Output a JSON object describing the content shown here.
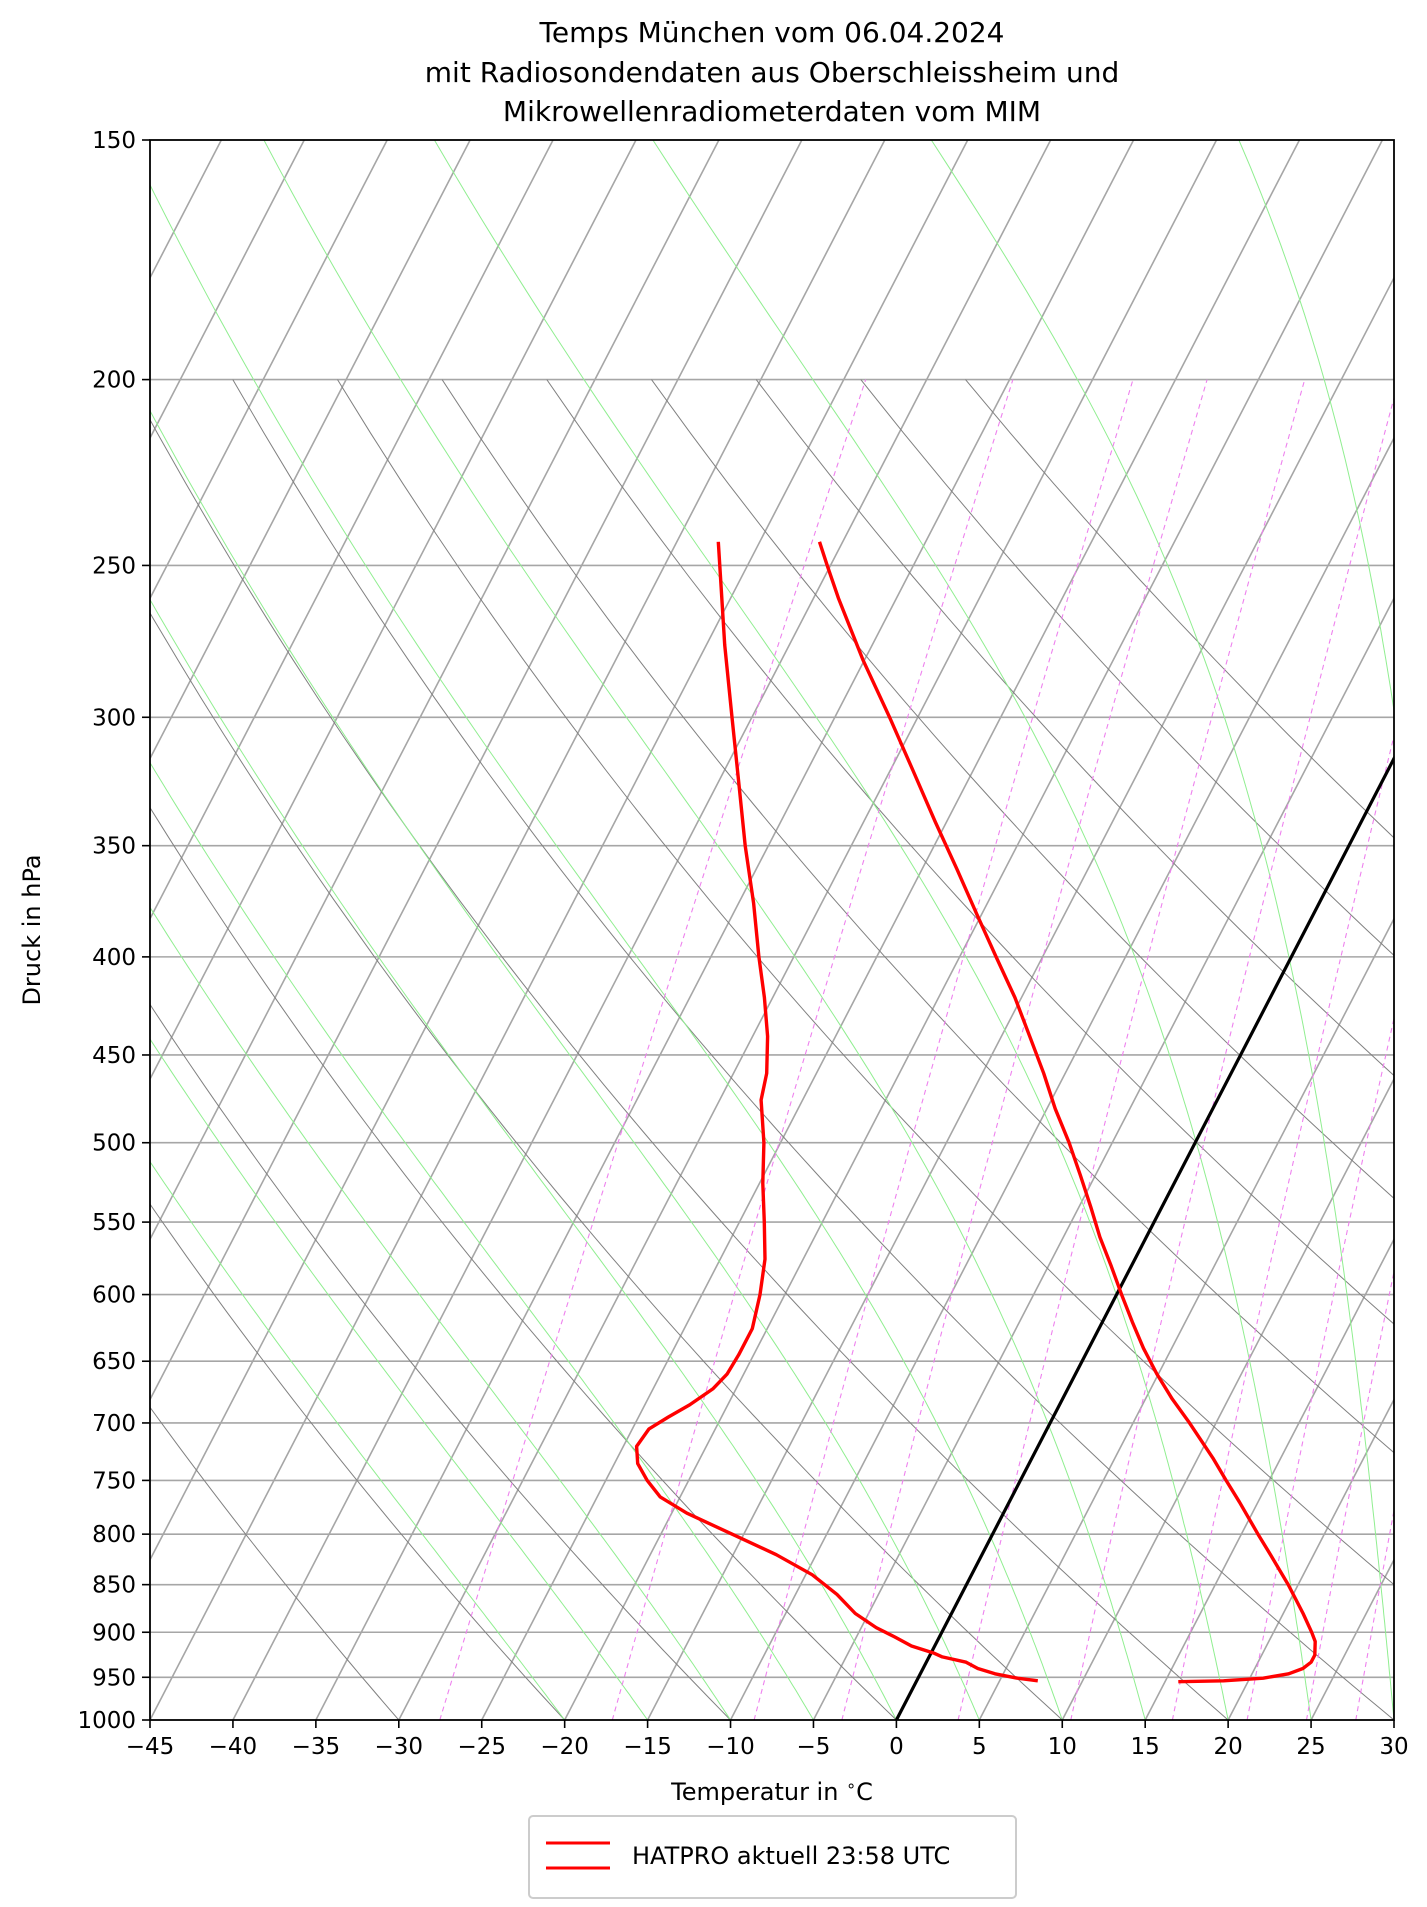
{
  "chart_data": {
    "type": "line",
    "subtype": "skew-t log-p diagram",
    "title_lines": [
      "Temps München vom 06.04.2024",
      "mit Radiosondendaten aus Oberschleissheim und",
      "Mikrowellenradiometerdaten vom MIM"
    ],
    "xlabel": "Temperatur in $^\\circ$C",
    "xlabel_text": "Temperatur in ",
    "xlabel_unit": "C",
    "ylabel": "Druck in hPa",
    "xlim": [
      -45,
      30
    ],
    "ylim": [
      1000,
      150
    ],
    "y_scale": "log",
    "x_ticks": [
      -45,
      -40,
      -35,
      -30,
      -25,
      -20,
      -15,
      -10,
      -5,
      0,
      5,
      10,
      15,
      20,
      25,
      30
    ],
    "x_tick_labels": [
      "−45",
      "−40",
      "−35",
      "−30",
      "−25",
      "−20",
      "−15",
      "−10",
      "−5",
      "0",
      "5",
      "10",
      "15",
      "20",
      "25",
      "30"
    ],
    "y_ticks": [
      1000,
      950,
      900,
      850,
      800,
      750,
      700,
      650,
      600,
      550,
      500,
      450,
      400,
      350,
      300,
      250,
      200,
      150
    ],
    "y_tick_labels": [
      "1000",
      "950",
      "900",
      "850",
      "800",
      "750",
      "700",
      "650",
      "600",
      "550",
      "500",
      "450",
      "400",
      "350",
      "300",
      "250",
      "200",
      "150"
    ],
    "grid": true,
    "legend": {
      "placement": "bottom-center, below plot",
      "entries": [
        {
          "label": "HATPRO aktuell 23:58 UTC",
          "color": "#ff0000"
        }
      ]
    },
    "colors": {
      "profile": "#ff0000",
      "zero_isotherm": "#000000",
      "isotherms": "#a6a6a6",
      "isobars": "#a6a6a6",
      "dry_adiabats": "#808080",
      "moist_adiabats": "#90ee90",
      "mixing_ratio": "#ee82ee"
    },
    "series": [
      {
        "name": "HATPRO aktuell 23:58 UTC",
        "quantity": "temperature",
        "points": [
          {
            "p": 955,
            "t": 15.8
          },
          {
            "p": 954,
            "t": 18.5
          },
          {
            "p": 951,
            "t": 20.8
          },
          {
            "p": 946,
            "t": 22.2
          },
          {
            "p": 940,
            "t": 22.9
          },
          {
            "p": 933,
            "t": 23.2
          },
          {
            "p": 925,
            "t": 23.2
          },
          {
            "p": 910,
            "t": 22.8
          },
          {
            "p": 900,
            "t": 22.3
          },
          {
            "p": 880,
            "t": 21.2
          },
          {
            "p": 850,
            "t": 19.4
          },
          {
            "p": 820,
            "t": 17.4
          },
          {
            "p": 800,
            "t": 16.0
          },
          {
            "p": 770,
            "t": 13.9
          },
          {
            "p": 750,
            "t": 12.4
          },
          {
            "p": 730,
            "t": 10.9
          },
          {
            "p": 700,
            "t": 8.4
          },
          {
            "p": 680,
            "t": 6.6
          },
          {
            "p": 660,
            "t": 4.9
          },
          {
            "p": 640,
            "t": 3.3
          },
          {
            "p": 620,
            "t": 1.8
          },
          {
            "p": 600,
            "t": 0.3
          },
          {
            "p": 580,
            "t": -1.2
          },
          {
            "p": 560,
            "t": -2.8
          },
          {
            "p": 540,
            "t": -4.3
          },
          {
            "p": 520,
            "t": -5.9
          },
          {
            "p": 500,
            "t": -7.6
          },
          {
            "p": 480,
            "t": -9.5
          },
          {
            "p": 460,
            "t": -11.3
          },
          {
            "p": 440,
            "t": -13.3
          },
          {
            "p": 420,
            "t": -15.4
          },
          {
            "p": 400,
            "t": -17.8
          },
          {
            "p": 380,
            "t": -20.3
          },
          {
            "p": 360,
            "t": -22.9
          },
          {
            "p": 340,
            "t": -25.7
          },
          {
            "p": 320,
            "t": -28.6
          },
          {
            "p": 300,
            "t": -31.7
          },
          {
            "p": 280,
            "t": -35.1
          },
          {
            "p": 260,
            "t": -38.5
          },
          {
            "p": 250,
            "t": -40.2
          },
          {
            "p": 243,
            "t": -41.4
          }
        ]
      },
      {
        "name": "HATPRO aktuell 23:58 UTC",
        "quantity": "dew point",
        "points": [
          {
            "p": 954,
            "t": 7.3
          },
          {
            "p": 951,
            "t": 6.0
          },
          {
            "p": 946,
            "t": 4.5
          },
          {
            "p": 940,
            "t": 3.3
          },
          {
            "p": 933,
            "t": 2.4
          },
          {
            "p": 927,
            "t": 0.8
          },
          {
            "p": 923,
            "t": 0.2
          },
          {
            "p": 915,
            "t": -1.4
          },
          {
            "p": 905,
            "t": -2.7
          },
          {
            "p": 895,
            "t": -4.1
          },
          {
            "p": 880,
            "t": -5.8
          },
          {
            "p": 860,
            "t": -7.5
          },
          {
            "p": 840,
            "t": -9.6
          },
          {
            "p": 820,
            "t": -12.4
          },
          {
            "p": 800,
            "t": -15.7
          },
          {
            "p": 780,
            "t": -19.1
          },
          {
            "p": 765,
            "t": -21.2
          },
          {
            "p": 750,
            "t": -22.5
          },
          {
            "p": 735,
            "t": -23.6
          },
          {
            "p": 720,
            "t": -24.2
          },
          {
            "p": 705,
            "t": -24.0
          },
          {
            "p": 695,
            "t": -23.2
          },
          {
            "p": 685,
            "t": -22.3
          },
          {
            "p": 672,
            "t": -21.4
          },
          {
            "p": 660,
            "t": -21.0
          },
          {
            "p": 645,
            "t": -20.9
          },
          {
            "p": 625,
            "t": -20.9
          },
          {
            "p": 600,
            "t": -21.5
          },
          {
            "p": 575,
            "t": -22.3
          },
          {
            "p": 550,
            "t": -23.5
          },
          {
            "p": 525,
            "t": -24.8
          },
          {
            "p": 500,
            "t": -26.0
          },
          {
            "p": 475,
            "t": -27.5
          },
          {
            "p": 460,
            "t": -28.0
          },
          {
            "p": 440,
            "t": -29.1
          },
          {
            "p": 420,
            "t": -30.5
          },
          {
            "p": 400,
            "t": -32.1
          },
          {
            "p": 375,
            "t": -34.1
          },
          {
            "p": 350,
            "t": -36.4
          },
          {
            "p": 325,
            "t": -38.7
          },
          {
            "p": 300,
            "t": -41.2
          },
          {
            "p": 275,
            "t": -43.9
          },
          {
            "p": 255,
            "t": -46.1
          },
          {
            "p": 243,
            "t": -47.5
          }
        ]
      }
    ]
  }
}
